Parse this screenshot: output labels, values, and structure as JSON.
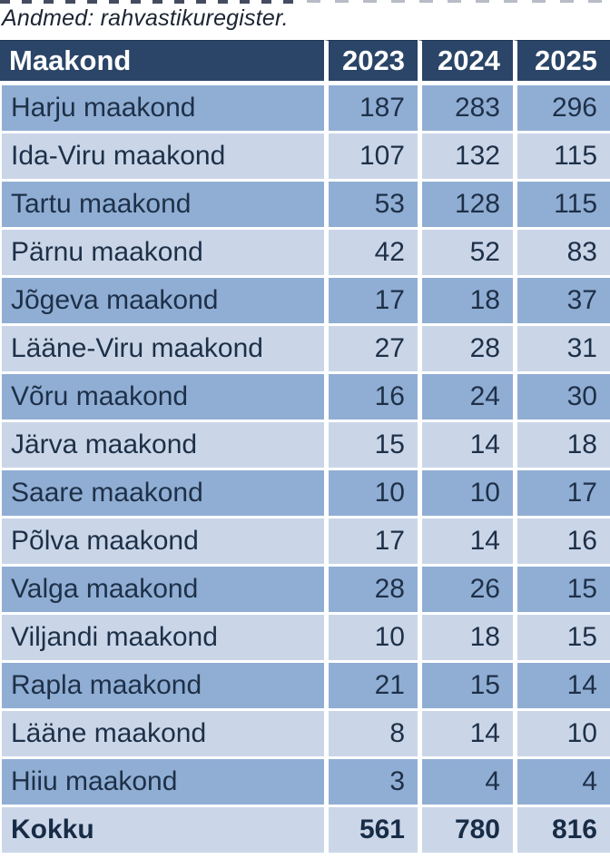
{
  "source_note": "Andmed: rahvastikuregister.",
  "colors": {
    "header_bg": "#2a4567",
    "header_text": "#ffffff",
    "row_medium_bg": "#90aed4",
    "row_light_bg": "#cad6e8",
    "total_row_bg": "#cbd7e9",
    "body_text": "#1e3048",
    "separator": "#ffffff"
  },
  "chart_data": {
    "type": "table",
    "title": "",
    "source": "Andmed: rahvastikuregister.",
    "columns": [
      "Maakond",
      "2023",
      "2024",
      "2025"
    ],
    "rows": [
      {
        "name": "Harju maakond",
        "values": [
          187,
          283,
          296
        ]
      },
      {
        "name": "Ida-Viru maakond",
        "values": [
          107,
          132,
          115
        ]
      },
      {
        "name": "Tartu maakond",
        "values": [
          53,
          128,
          115
        ]
      },
      {
        "name": "Pärnu maakond",
        "values": [
          42,
          52,
          83
        ]
      },
      {
        "name": "Jõgeva maakond",
        "values": [
          17,
          18,
          37
        ]
      },
      {
        "name": "Lääne-Viru maakond",
        "values": [
          27,
          28,
          31
        ]
      },
      {
        "name": "Võru maakond",
        "values": [
          16,
          24,
          30
        ]
      },
      {
        "name": "Järva maakond",
        "values": [
          15,
          14,
          18
        ]
      },
      {
        "name": "Saare maakond",
        "values": [
          10,
          10,
          17
        ]
      },
      {
        "name": "Põlva maakond",
        "values": [
          17,
          14,
          16
        ]
      },
      {
        "name": "Valga maakond",
        "values": [
          28,
          26,
          15
        ]
      },
      {
        "name": "Viljandi maakond",
        "values": [
          10,
          18,
          15
        ]
      },
      {
        "name": "Rapla maakond",
        "values": [
          21,
          15,
          14
        ]
      },
      {
        "name": "Lääne maakond",
        "values": [
          8,
          14,
          10
        ]
      },
      {
        "name": "Hiiu maakond",
        "values": [
          3,
          4,
          4
        ]
      }
    ],
    "totals": {
      "label": "Kokku",
      "values": [
        561,
        780,
        816
      ]
    }
  }
}
